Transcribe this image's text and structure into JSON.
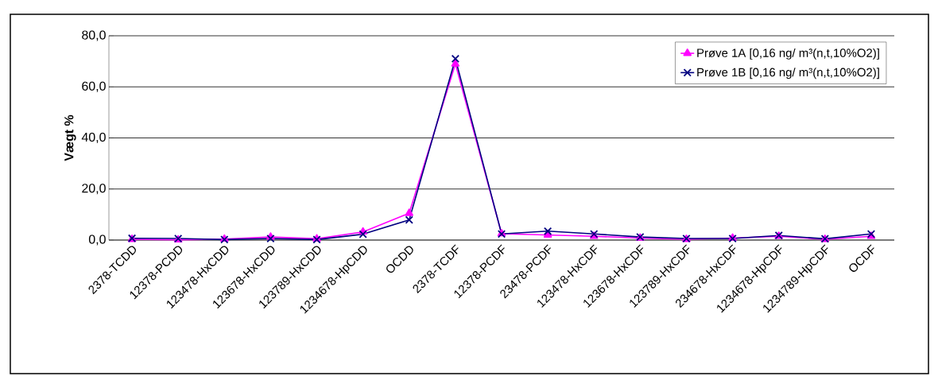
{
  "chart_data": {
    "type": "line",
    "ylabel": "Vægt %",
    "categories": [
      "2378-TCDD",
      "12378-PCDD",
      "123478-HxCDD",
      "123678-HxCDD",
      "123789-HxCDD",
      "1234678-HpCDD",
      "OCDD",
      "2378-TCDF",
      "12378-PCDF",
      "23478-PCDF",
      "123478-HxCDF",
      "123678-HxCDF",
      "123789-HxCDF",
      "234678-HxCDF",
      "1234678-HpCDF",
      "1234789-HpCDF",
      "OCDF"
    ],
    "series": [
      {
        "name": "Prøve 1A [0,16 ng/ m³(n,t,10%O2)]",
        "color": "#ff00ff",
        "marker": "triangle",
        "values": [
          0.3,
          0.1,
          0.4,
          1.2,
          0.5,
          3.2,
          10.5,
          69.0,
          2.5,
          2.0,
          1.5,
          0.8,
          0.3,
          0.8,
          1.5,
          0.3,
          1.5
        ]
      },
      {
        "name": "Prøve 1B [0,16 ng/ m³(n,t,10%O2)]",
        "color": "#000080",
        "marker": "cross",
        "values": [
          0.7,
          0.6,
          0.2,
          0.6,
          0.2,
          2.3,
          7.9,
          71.0,
          2.4,
          3.5,
          2.4,
          1.2,
          0.6,
          0.6,
          1.8,
          0.5,
          2.4
        ]
      }
    ],
    "ylim": [
      0,
      80
    ],
    "yticks": [
      {
        "value": 0,
        "label": "0,0"
      },
      {
        "value": 20,
        "label": "20,0"
      },
      {
        "value": 40,
        "label": "40,0"
      },
      {
        "value": 60,
        "label": "60,0"
      },
      {
        "value": 80,
        "label": "80,0"
      }
    ],
    "grid": "y",
    "legend": "top right"
  }
}
